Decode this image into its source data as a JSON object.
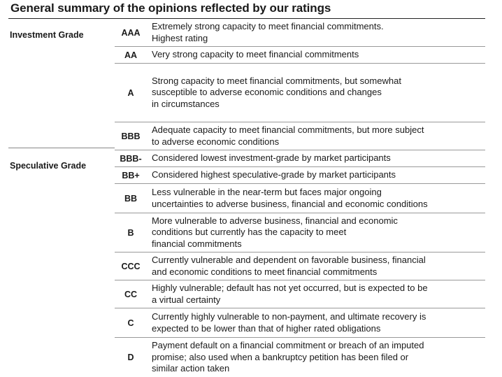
{
  "title": "General summary of the opinions reflected by our ratings",
  "groups": {
    "investment": "Investment Grade",
    "speculative": "Speculative Grade"
  },
  "ratings": [
    {
      "code": "AAA",
      "desc": "Extremely strong capacity to meet financial commitments.\nHighest rating"
    },
    {
      "code": "AA",
      "desc": "Very strong capacity to meet financial commitments"
    },
    {
      "code": "A",
      "desc": "Strong capacity to meet financial commitments, but somewhat\nsusceptible to adverse economic conditions and changes\nin circumstances"
    },
    {
      "code": "BBB",
      "desc": "Adequate capacity to meet financial commitments, but more subject\nto adverse economic conditions"
    },
    {
      "code": "BBB-",
      "desc": "Considered lowest investment-grade by market participants"
    },
    {
      "code": "BB+",
      "desc": "Considered highest speculative-grade by market participants"
    },
    {
      "code": "BB",
      "desc": "Less vulnerable in the near-term but faces major ongoing\nuncertainties to adverse business, financial and economic conditions"
    },
    {
      "code": "B",
      "desc": "More vulnerable to adverse business, financial and economic\nconditions but currently has the capacity to meet\nfinancial commitments"
    },
    {
      "code": "CCC",
      "desc": "Currently vulnerable and dependent on favorable business, financial\nand economic conditions to meet financial commitments"
    },
    {
      "code": "CC",
      "desc": "Highly vulnerable; default has not yet occurred, but is expected to be\na virtual certainty"
    },
    {
      "code": "C",
      "desc": "Currently highly vulnerable to non-payment, and ultimate recovery is\nexpected to be lower than that of higher rated obligations"
    },
    {
      "code": "D",
      "desc": "Payment default on a financial commitment or breach of an imputed\npromise; also used when a bankruptcy petition has been filed or\nsimilar action taken"
    }
  ]
}
